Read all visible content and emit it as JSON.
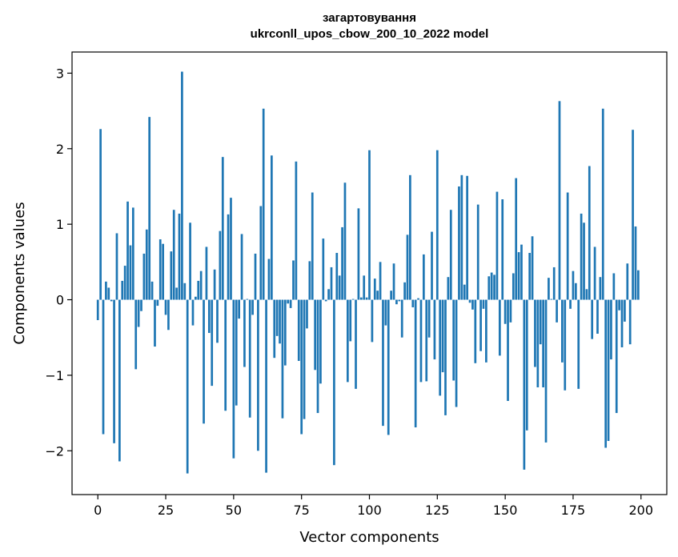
{
  "chart_data": {
    "type": "bar",
    "title": "загартовування\nukrconll_upos_cbow_200_10_2022 model",
    "xlabel": "Vector components",
    "ylabel": "Components values",
    "xlim": [
      -9.5,
      209.5
    ],
    "ylim": [
      -2.58,
      3.28
    ],
    "xticks": [
      0,
      25,
      50,
      75,
      100,
      125,
      150,
      175,
      200
    ],
    "yticks": [
      -2,
      -1,
      0,
      1,
      2,
      3
    ],
    "grid": false,
    "legend": "none",
    "bar_color": "#1f77b4",
    "x": [
      0,
      1,
      2,
      3,
      4,
      5,
      6,
      7,
      8,
      9,
      10,
      11,
      12,
      13,
      14,
      15,
      16,
      17,
      18,
      19,
      20,
      21,
      22,
      23,
      24,
      25,
      26,
      27,
      28,
      29,
      30,
      31,
      32,
      33,
      34,
      35,
      36,
      37,
      38,
      39,
      40,
      41,
      42,
      43,
      44,
      45,
      46,
      47,
      48,
      49,
      50,
      51,
      52,
      53,
      54,
      55,
      56,
      57,
      58,
      59,
      60,
      61,
      62,
      63,
      64,
      65,
      66,
      67,
      68,
      69,
      70,
      71,
      72,
      73,
      74,
      75,
      76,
      77,
      78,
      79,
      80,
      81,
      82,
      83,
      84,
      85,
      86,
      87,
      88,
      89,
      90,
      91,
      92,
      93,
      94,
      95,
      96,
      97,
      98,
      99,
      100,
      101,
      102,
      103,
      104,
      105,
      106,
      107,
      108,
      109,
      110,
      111,
      112,
      113,
      114,
      115,
      116,
      117,
      118,
      119,
      120,
      121,
      122,
      123,
      124,
      125,
      126,
      127,
      128,
      129,
      130,
      131,
      132,
      133,
      134,
      135,
      136,
      137,
      138,
      139,
      140,
      141,
      142,
      143,
      144,
      145,
      146,
      147,
      148,
      149,
      150,
      151,
      152,
      153,
      154,
      155,
      156,
      157,
      158,
      159,
      160,
      161,
      162,
      163,
      164,
      165,
      166,
      167,
      168,
      169,
      170,
      171,
      172,
      173,
      174,
      175,
      176,
      177,
      178,
      179,
      180,
      181,
      182,
      183,
      184,
      185,
      186,
      187,
      188,
      189,
      190,
      191,
      192,
      193,
      194,
      195,
      196,
      197,
      198,
      199
    ],
    "values": [
      -0.27,
      2.26,
      -1.78,
      0.24,
      0.16,
      -0.02,
      -1.9,
      0.88,
      -2.14,
      0.25,
      0.45,
      1.3,
      0.72,
      1.22,
      -0.92,
      -0.36,
      -0.15,
      0.61,
      0.93,
      2.42,
      0.24,
      -0.62,
      -0.08,
      0.8,
      0.74,
      -0.2,
      -0.4,
      0.64,
      1.19,
      0.16,
      1.14,
      3.02,
      0.22,
      -2.3,
      1.02,
      -0.34,
      0.04,
      0.25,
      0.38,
      -1.64,
      0.7,
      -0.44,
      -1.14,
      0.4,
      -0.57,
      0.91,
      1.89,
      -1.47,
      1.13,
      1.35,
      -2.1,
      -1.4,
      -0.25,
      0.87,
      -0.89,
      0.01,
      -1.56,
      -0.2,
      0.61,
      -2.0,
      1.24,
      2.53,
      -2.29,
      0.54,
      1.91,
      -0.77,
      -0.48,
      -0.58,
      -1.57,
      -0.87,
      -0.05,
      -0.11,
      0.52,
      1.83,
      -0.81,
      -1.78,
      -1.58,
      -0.38,
      0.51,
      1.42,
      -0.93,
      -1.5,
      -1.11,
      0.81,
      -0.02,
      0.14,
      0.43,
      -2.19,
      0.62,
      0.32,
      0.96,
      1.55,
      -1.09,
      -0.55,
      0.01,
      -1.18,
      1.21,
      0.03,
      0.32,
      0.03,
      1.98,
      -0.56,
      0.28,
      0.12,
      0.5,
      -1.67,
      -0.34,
      -1.79,
      0.12,
      0.48,
      -0.06,
      -0.02,
      -0.5,
      0.23,
      0.86,
      1.65,
      -0.1,
      -1.69,
      0.02,
      -1.09,
      0.6,
      -1.08,
      -0.5,
      0.9,
      -0.79,
      1.98,
      -1.27,
      -0.96,
      -1.53,
      0.3,
      1.19,
      -1.07,
      -1.42,
      1.5,
      1.65,
      0.2,
      1.64,
      -0.04,
      -0.13,
      -0.84,
      1.26,
      -0.68,
      -0.12,
      -0.83,
      0.31,
      0.36,
      0.33,
      1.43,
      -0.74,
      1.33,
      -0.32,
      -1.34,
      -0.3,
      0.35,
      1.61,
      0.63,
      0.73,
      -2.25,
      -1.73,
      0.62,
      0.84,
      -0.89,
      -1.16,
      -0.59,
      -1.16,
      -1.89,
      0.29,
      0.01,
      0.43,
      -0.3,
      2.63,
      -0.83,
      -1.2,
      1.42,
      -0.12,
      0.38,
      0.22,
      -1.18,
      1.14,
      1.02,
      0.14,
      1.77,
      -0.52,
      0.7,
      -0.45,
      0.3,
      2.53,
      -1.96,
      -1.87,
      -0.79,
      0.35,
      -1.5,
      -0.14,
      -0.63,
      -0.29,
      0.48,
      -0.59,
      2.25,
      0.97,
      0.39
    ]
  }
}
